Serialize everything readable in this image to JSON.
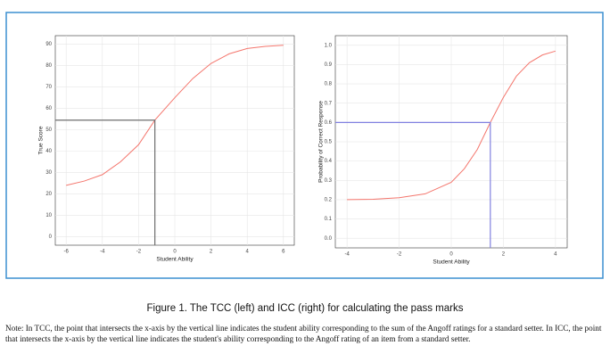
{
  "chart_data": [
    {
      "type": "line",
      "x_label": "Student Ability",
      "y_label": "True Score",
      "x": [
        -6,
        -5,
        -4,
        -3,
        -2,
        -1.1,
        0,
        1,
        2,
        3,
        4,
        5,
        6
      ],
      "values": [
        24,
        26,
        29,
        35,
        43,
        54.5,
        65,
        74,
        81,
        85.5,
        88,
        89,
        89.5
      ],
      "color": "#f4766d",
      "ref_x": -1.1,
      "ref_y": 54.5,
      "ref_color": "#6e6e6e",
      "xlim": [
        -6.6,
        6.6
      ],
      "xticks": [
        -6,
        -4,
        -2,
        0,
        2,
        4,
        6
      ],
      "ylim": [
        -4,
        94
      ],
      "yticks": [
        0,
        10,
        20,
        30,
        40,
        50,
        60,
        70,
        80,
        90
      ],
      "grid": true
    },
    {
      "type": "line",
      "x_label": "Student Ability",
      "y_label": "Probability of Correct Response",
      "x": [
        -4,
        -3,
        -2,
        -1,
        0,
        0.5,
        1,
        1.5,
        2,
        2.5,
        3,
        3.5,
        4
      ],
      "values": [
        0.2,
        0.202,
        0.21,
        0.23,
        0.29,
        0.36,
        0.46,
        0.6,
        0.73,
        0.84,
        0.91,
        0.95,
        0.97
      ],
      "color": "#f4766d",
      "ref_x": 1.5,
      "ref_y": 0.6,
      "ref_color": "#8080e0",
      "xlim": [
        -4.45,
        4.45
      ],
      "xticks": [
        -4,
        -2,
        0,
        2,
        4
      ],
      "ylim": [
        -0.05,
        1.05
      ],
      "yticks": [
        {
          "value": 0,
          "label": "0.0"
        },
        0.1,
        0.2,
        0.3,
        0.4,
        0.5,
        0.6,
        0.7,
        0.8,
        0.9,
        {
          "value": 1,
          "label": "1.0"
        }
      ],
      "grid": true
    }
  ],
  "caption": "Figure 1. The TCC (left) and ICC (right) for calculating the pass marks",
  "note": "Note: In TCC, the point that intersects the x-axis by the vertical line indicates the student ability corresponding to the sum of the Angoff ratings for a standard setter. In ICC, the point that intersects the x-axis by the vertical line indicates the student's ability corresponding to the Angoff rating of an item from a standard setter."
}
